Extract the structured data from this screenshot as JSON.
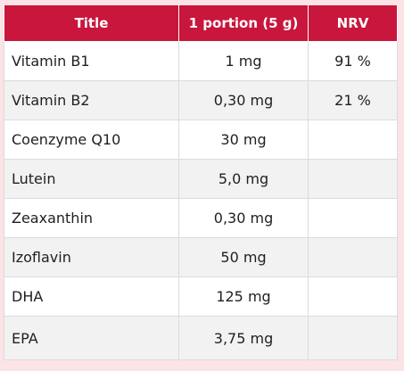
{
  "table": {
    "headers": [
      "Title",
      "1 portion (5 g)",
      "NRV"
    ],
    "rows": [
      {
        "title": "Vitamin B1",
        "portion": "1 mg",
        "nrv": "91 %"
      },
      {
        "title": "Vitamin B2",
        "portion": "0,30 mg",
        "nrv": "21 %"
      },
      {
        "title": "Coenzyme Q10",
        "portion": "30 mg",
        "nrv": ""
      },
      {
        "title": "Lutein",
        "portion": "5,0 mg",
        "nrv": ""
      },
      {
        "title": "Zeaxanthin",
        "portion": "0,30 mg",
        "nrv": ""
      },
      {
        "title": "Izoflavin",
        "portion": "50 mg",
        "nrv": ""
      },
      {
        "title": "DHA",
        "portion": "125 mg",
        "nrv": ""
      },
      {
        "title": "EPA",
        "portion": "3,75 mg",
        "nrv": ""
      }
    ]
  },
  "colors": {
    "header_bg": "#c8163c",
    "page_bg": "#fbe3e6",
    "row_alt_bg": "#f2f2f2"
  }
}
